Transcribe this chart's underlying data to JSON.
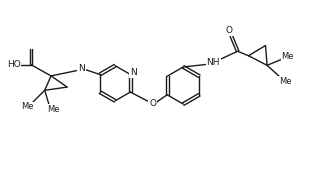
{
  "bg_color": "#ffffff",
  "line_color": "#1a1a1a",
  "line_width": 1.0,
  "font_size": 6.5,
  "fig_width": 3.23,
  "fig_height": 1.71,
  "dpi": 100,
  "xlim": [
    0,
    10
  ],
  "ylim": [
    0,
    5.3
  ]
}
